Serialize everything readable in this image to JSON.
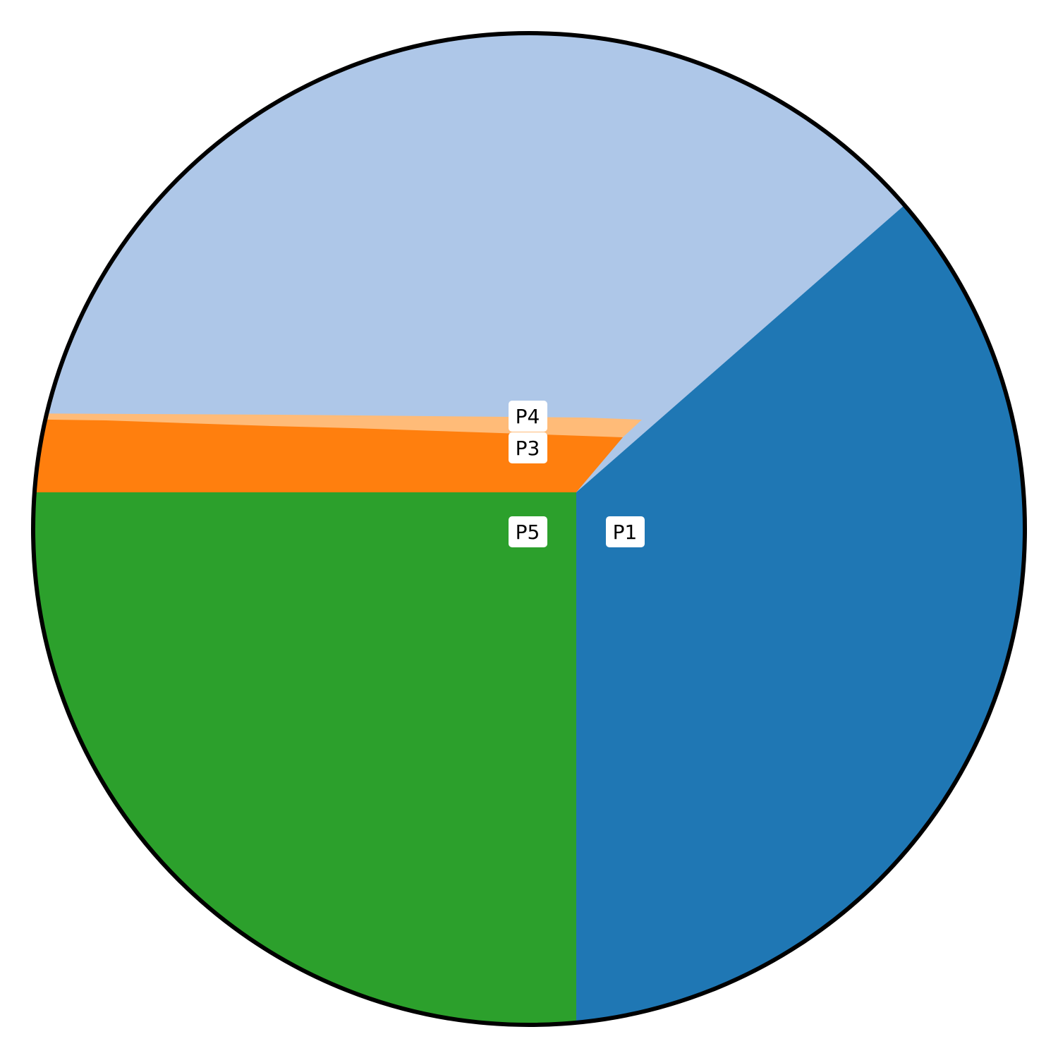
{
  "regions": [
    {
      "id": "P1",
      "label": "P1",
      "color": "#1f77b4"
    },
    {
      "id": "P2",
      "color": "#aec7e8"
    },
    {
      "id": "P3",
      "label": "P3",
      "color": "#ff7f0e"
    },
    {
      "id": "P4",
      "label": "P4",
      "color": "#ffbb78"
    },
    {
      "id": "P5",
      "label": "P5",
      "color": "#2ca02c"
    }
  ],
  "outline_color": "#000000"
}
